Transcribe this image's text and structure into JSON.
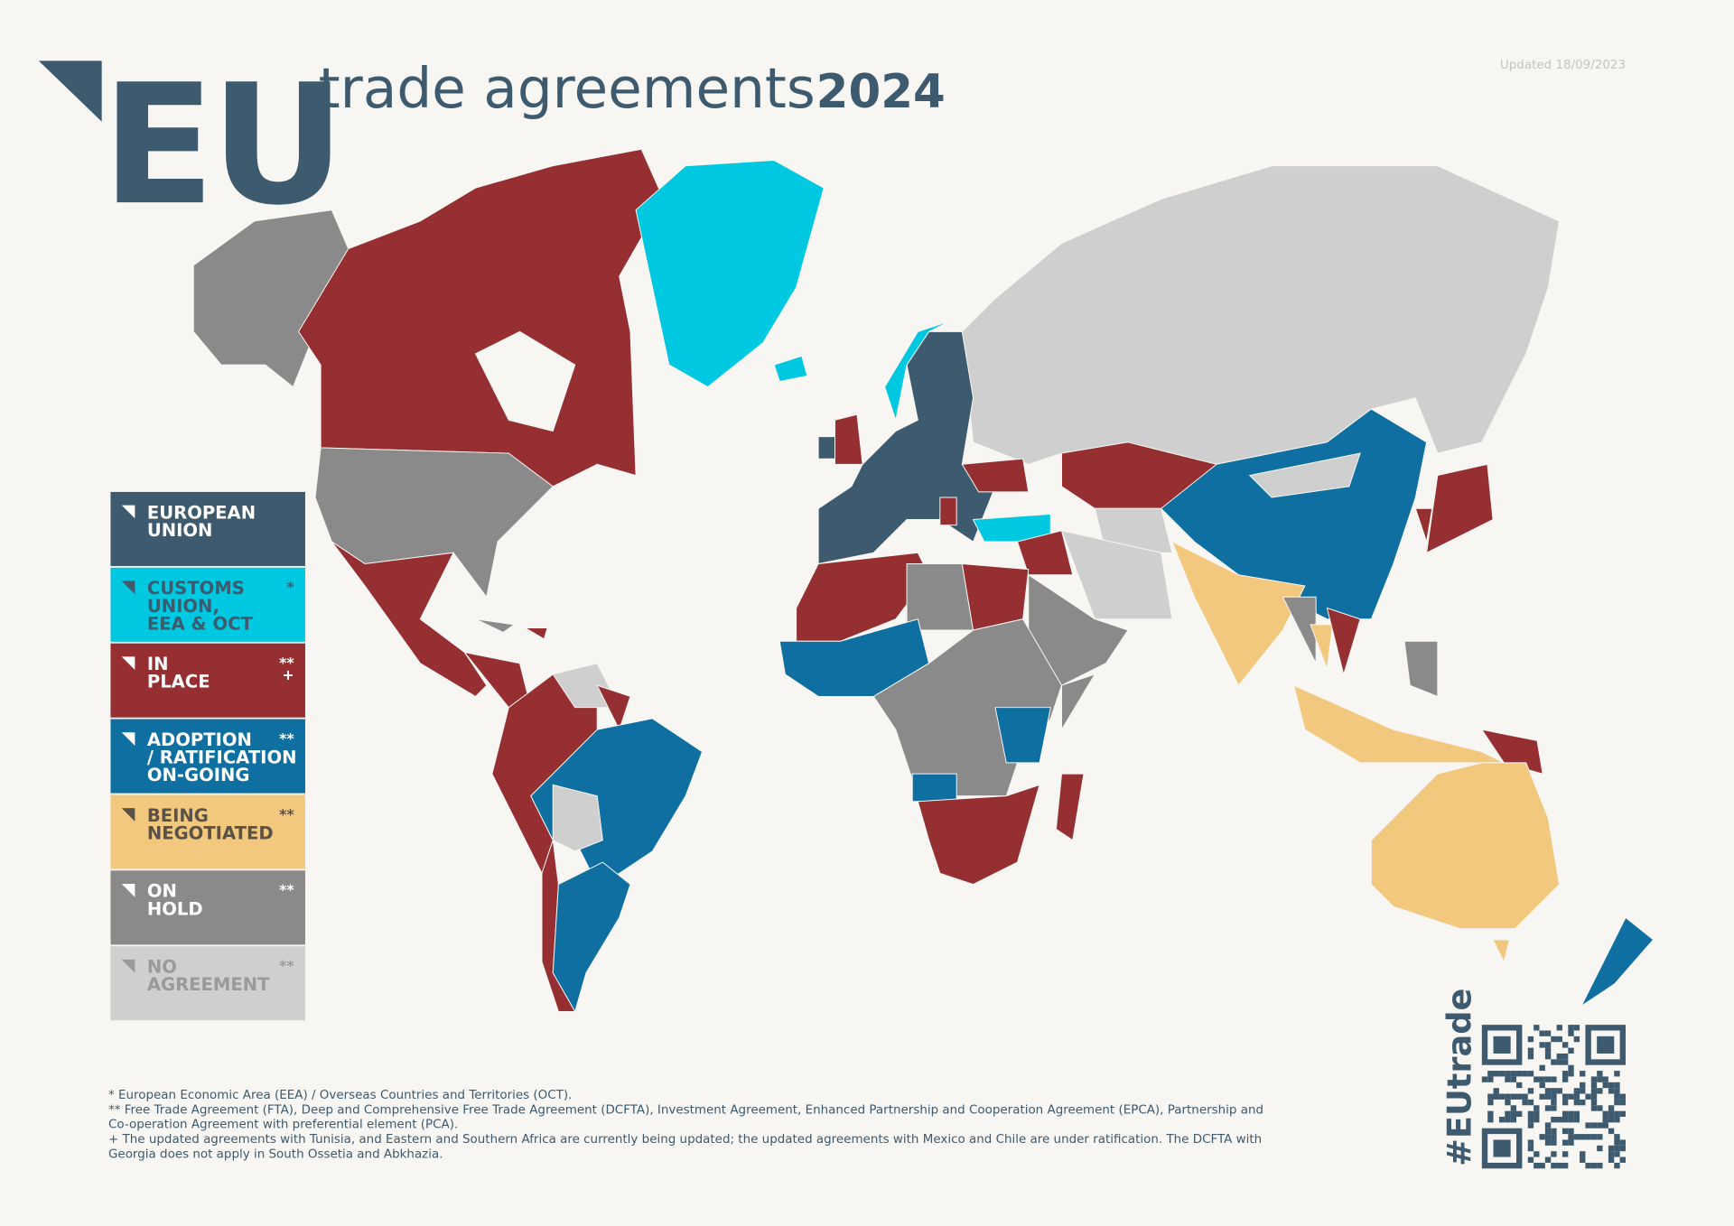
{
  "header": {
    "logo": "EU",
    "title": "trade agreements",
    "year": "2024",
    "updated": "Updated 18/09/2023"
  },
  "legend": [
    {
      "label": [
        "EUROPEAN",
        "UNION"
      ],
      "color": "#3d5a6e",
      "text_color": "#ffffff"
    },
    {
      "label": [
        "CUSTOMS",
        "UNION,",
        "EEA & OCT"
      ],
      "marker": [
        "*"
      ],
      "color": "#00c8e0",
      "text_color": "#3d5a6e"
    },
    {
      "label": [
        "IN",
        "PLACE"
      ],
      "marker": [
        "**",
        "+"
      ],
      "color": "#952f32",
      "text_color": "#ffffff"
    },
    {
      "label": [
        "ADOPTION",
        "/ RATIFICATION",
        "ON-GOING"
      ],
      "marker": [
        "**"
      ],
      "color": "#0e6fa0",
      "text_color": "#ffffff"
    },
    {
      "label": [
        "BEING",
        "NEGOTIATED"
      ],
      "marker": [
        "**"
      ],
      "color": "#f2c77e",
      "text_color": "#5a5246"
    },
    {
      "label": [
        "ON",
        "HOLD"
      ],
      "marker": [
        "**"
      ],
      "color": "#8a8a8a",
      "text_color": "#ffffff"
    },
    {
      "label": [
        "NO",
        "AGREEMENT"
      ],
      "marker": [
        "**"
      ],
      "color": "#cfcfcf",
      "text_color": "#9a9a9a"
    }
  ],
  "footnotes": [
    "* European Economic Area (EEA) / Overseas Countries and Territories (OCT).",
    "** Free Trade Agreement (FTA), Deep and Comprehensive Free Trade Agreement (DCFTA), Investment Agreement, Enhanced Partnership and Cooperation Agreement (EPCA), Partnership and",
    "Co-operation Agreement with preferential element (PCA).",
    "+ The updated agreements with Tunisia, and Eastern and Southern Africa are currently being updated; the updated agreements with Mexico and Chile are under ratification. The DCFTA with",
    "Georgia does not apply in South Ossetia and Abkhazia."
  ],
  "hashtag": "#EUtrade"
}
